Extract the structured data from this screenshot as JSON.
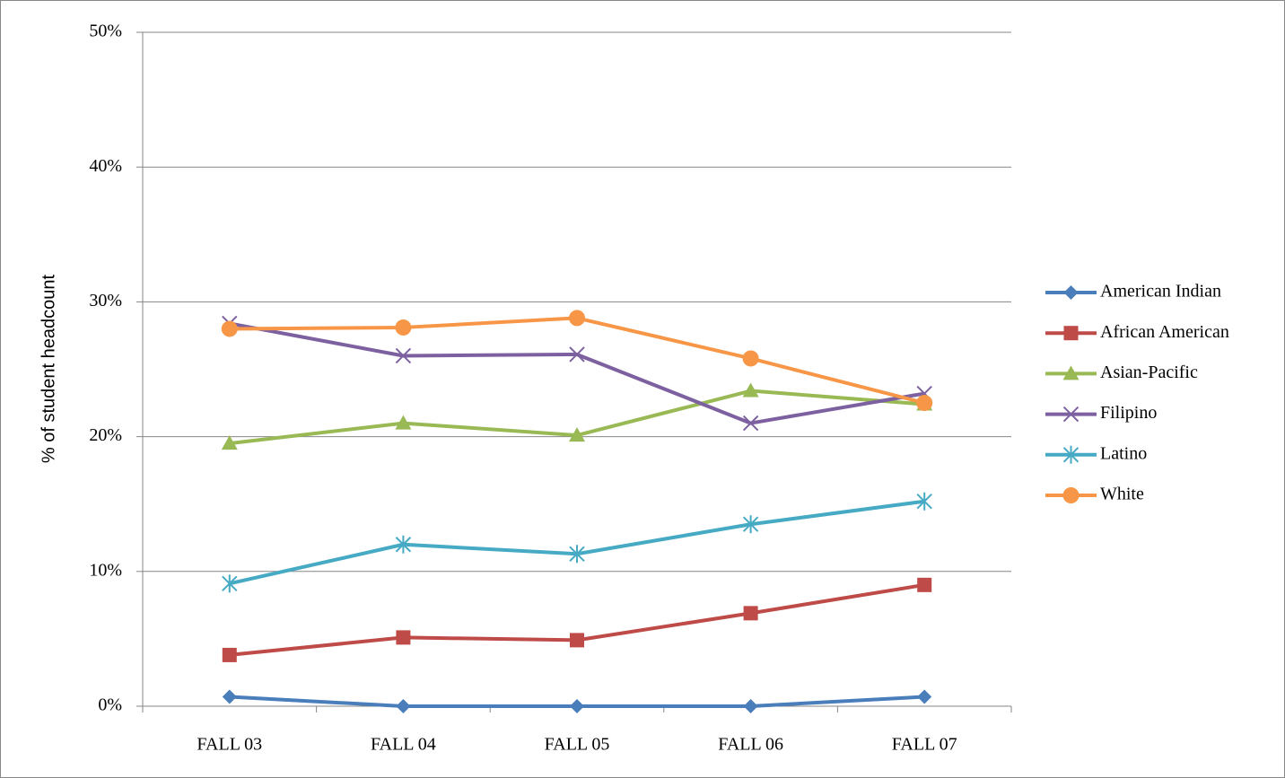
{
  "chart_data": {
    "type": "line",
    "y_label": "% of student headcount",
    "categories": [
      "FALL 03",
      "FALL 04",
      "FALL 05",
      "FALL 06",
      "FALL 07"
    ],
    "series": [
      {
        "name": "American Indian",
        "color": "#4a7ebb",
        "marker": "diamond",
        "values": [
          0.7,
          0,
          0,
          0,
          0.7
        ]
      },
      {
        "name": "African American",
        "color": "#be4b48",
        "marker": "square",
        "values": [
          3.8,
          5.1,
          4.9,
          6.9,
          9.0
        ]
      },
      {
        "name": "Asian-Pacific",
        "color": "#98b954",
        "marker": "triangle",
        "values": [
          19.5,
          21.0,
          20.1,
          23.4,
          22.4
        ]
      },
      {
        "name": "Filipino",
        "color": "#7d60a0",
        "marker": "x",
        "values": [
          28.4,
          26.0,
          26.1,
          21.0,
          23.2
        ]
      },
      {
        "name": "Latino",
        "color": "#46aac5",
        "marker": "star",
        "values": [
          9.1,
          12.0,
          11.3,
          13.5,
          15.2
        ]
      },
      {
        "name": "White",
        "color": "#f79646",
        "marker": "circle",
        "values": [
          28.0,
          28.1,
          28.8,
          25.8,
          22.5
        ]
      }
    ],
    "ylim": [
      0,
      50
    ],
    "yticks": [
      {
        "value": 0,
        "label": "0%"
      },
      {
        "value": 10,
        "label": "10%"
      },
      {
        "value": 20,
        "label": "20%"
      },
      {
        "value": 30,
        "label": "30%"
      },
      {
        "value": 40,
        "label": "40%"
      },
      {
        "value": 50,
        "label": "50%"
      }
    ],
    "grid": true,
    "legend": "right"
  }
}
